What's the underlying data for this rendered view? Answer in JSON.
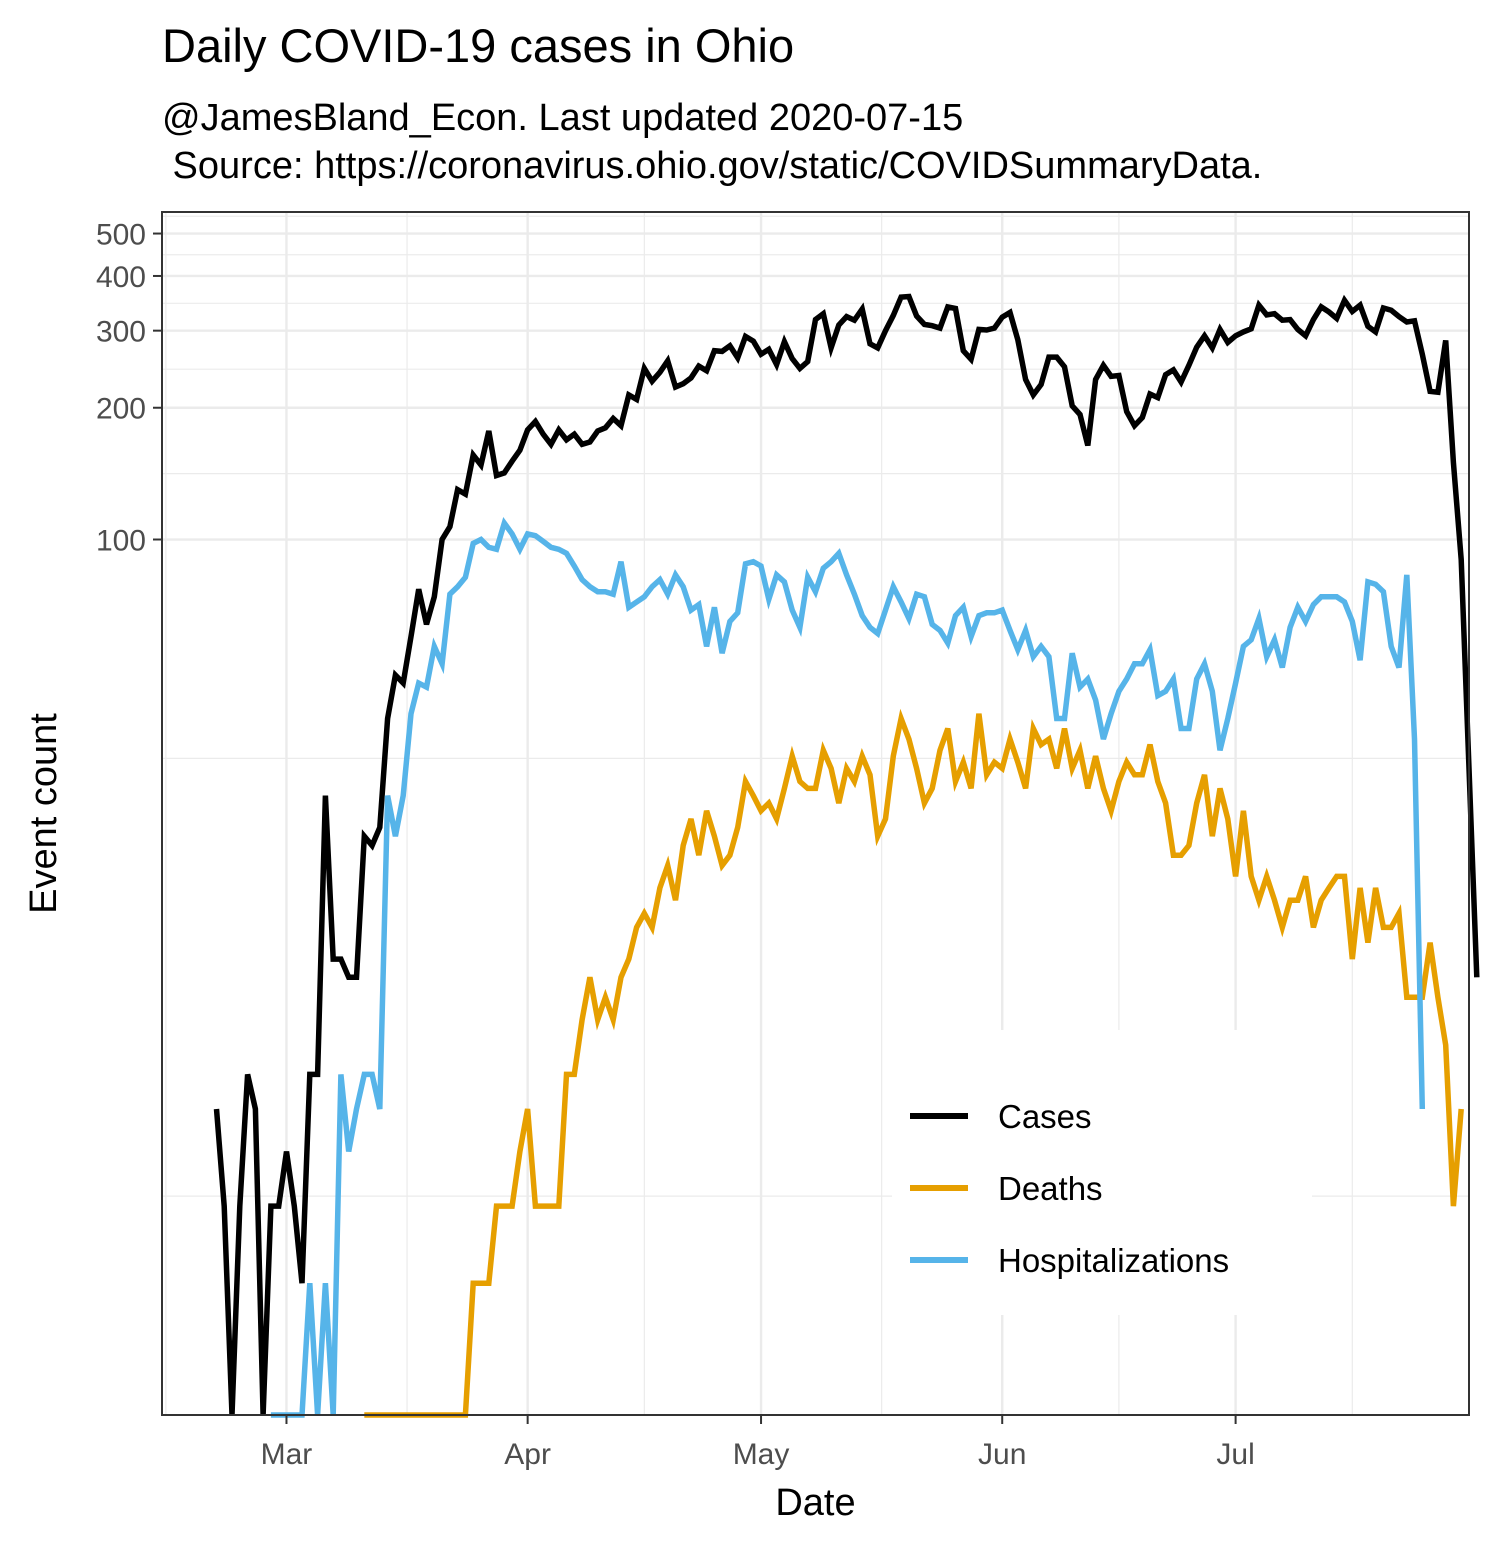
{
  "chart_data": {
    "type": "line",
    "title": "Daily COVID-19 cases in Ohio",
    "subtitle_lines": [
      "@JamesBland_Econ. Last updated 2020-07-15",
      " Source: https://coronavirus.ohio.gov/static/COVIDSummaryData."
    ],
    "xlabel": "Date",
    "ylabel": "Event count",
    "y_scale": "log",
    "y_ticks": [
      100,
      200,
      300,
      400,
      500
    ],
    "y_tick_labels": [
      "100",
      "200",
      "300",
      "400",
      "500"
    ],
    "x_ticks": [
      "2020-03-01",
      "2020-04-01",
      "2020-05-01",
      "2020-06-01",
      "2020-07-01"
    ],
    "x_tick_labels": [
      "Mar",
      "Apr",
      "May",
      "Jun",
      "Jul"
    ],
    "xlim": [
      "2020-02-14",
      "2020-07-31"
    ],
    "ylim": [
      1,
      560
    ],
    "grid": true,
    "legend_position": "bottom-right",
    "start_date": "2020-02-21",
    "series": [
      {
        "name": "Cases",
        "color": "#000000",
        "start": "2020-02-21",
        "values": [
          5,
          3,
          1,
          3,
          6,
          5,
          1,
          3,
          3,
          4,
          3,
          2,
          6,
          6,
          26,
          11,
          11,
          10,
          10,
          21,
          20,
          22,
          39,
          49,
          47,
          60,
          77,
          64,
          74,
          100,
          107,
          130,
          127,
          156,
          148,
          177,
          140,
          142,
          151,
          160,
          178,
          186,
          174,
          165,
          178,
          169,
          174,
          165,
          167,
          177,
          180,
          189,
          182,
          214,
          209,
          246,
          230,
          241,
          256,
          223,
          227,
          234,
          249,
          243,
          270,
          269,
          277,
          260,
          291,
          284,
          265,
          272,
          251,
          283,
          259,
          246,
          255,
          318,
          328,
          274,
          309,
          323,
          317,
          336,
          280,
          274,
          300,
          325,
          358,
          359,
          324,
          310,
          308,
          304,
          340,
          337,
          270,
          258,
          302,
          301,
          304,
          322,
          330,
          286,
          232,
          214,
          226,
          261,
          261,
          248,
          202,
          193,
          164,
          232,
          250,
          236,
          237,
          196,
          182,
          190,
          215,
          211,
          238,
          244,
          229,
          250,
          275,
          292,
          274,
          302,
          282,
          292,
          298,
          303,
          343,
          326,
          328,
          317,
          318,
          302,
          292,
          318,
          340,
          331,
          320,
          352,
          332,
          343,
          307,
          298,
          338,
          334,
          323,
          314,
          316,
          265,
          218,
          217,
          285,
          150,
          90,
          30,
          10
        ]
      },
      {
        "name": "Deaths",
        "color": "#E69F00",
        "start": "2020-03-11",
        "values": [
          1,
          1,
          1,
          1,
          1,
          1,
          1,
          1,
          1,
          1,
          1,
          1,
          1,
          1,
          2,
          2,
          2,
          3,
          3,
          3,
          4,
          5,
          3,
          3,
          3,
          3,
          6,
          6,
          8,
          10,
          8,
          9,
          8,
          10,
          11,
          13,
          14,
          13,
          16,
          18,
          15,
          20,
          23,
          19,
          24,
          21,
          18,
          19,
          22,
          28,
          26,
          24,
          25,
          23,
          27,
          32,
          28,
          27,
          27,
          33,
          30,
          25,
          30,
          28,
          32,
          29,
          21,
          23,
          32,
          39,
          35,
          30,
          25,
          27,
          33,
          37,
          28,
          31,
          27,
          40,
          29,
          31,
          30,
          35,
          31,
          27,
          37,
          34,
          35,
          30,
          37,
          30,
          33,
          27,
          32,
          27,
          24,
          28,
          31,
          29,
          29,
          34,
          28,
          25,
          19,
          19,
          20,
          25,
          29,
          21,
          27,
          23,
          17,
          24,
          17,
          15,
          17,
          15,
          13,
          15,
          15,
          17,
          13,
          15,
          16,
          17,
          17,
          11,
          16,
          12,
          16,
          13,
          13,
          14,
          9,
          9,
          9,
          12,
          9,
          7,
          3,
          5
        ]
      },
      {
        "name": "Hospitalizations",
        "color": "#56B4E9",
        "start": "2020-02-28",
        "values": [
          1,
          1,
          1,
          1,
          1,
          2,
          1,
          2,
          1,
          6,
          4,
          5,
          6,
          6,
          5,
          26,
          21,
          26,
          40,
          47,
          46,
          57,
          52,
          75,
          78,
          82,
          98,
          100,
          96,
          95,
          109,
          103,
          95,
          103,
          102,
          99,
          96,
          95,
          93,
          87,
          81,
          78,
          76,
          76,
          75,
          89,
          70,
          72,
          74,
          78,
          81,
          75,
          83,
          78,
          69,
          71,
          57,
          70,
          55,
          65,
          68,
          88,
          89,
          87,
          73,
          83,
          80,
          69,
          63,
          82,
          76,
          86,
          89,
          93,
          83,
          75,
          67,
          63,
          61,
          69,
          78,
          72,
          66,
          75,
          74,
          64,
          62,
          58,
          67,
          70,
          60,
          67,
          68,
          68,
          69,
          62,
          56,
          62,
          54,
          57,
          54,
          39,
          39,
          55,
          46,
          48,
          43,
          35,
          40,
          45,
          48,
          52,
          52,
          56,
          44,
          45,
          48,
          37,
          37,
          48,
          52,
          45,
          33,
          39,
          47,
          57,
          59,
          66,
          54,
          59,
          51,
          63,
          70,
          65,
          71,
          74,
          74,
          74,
          72,
          65,
          53,
          80,
          79,
          76,
          57,
          51,
          83,
          35,
          5
        ]
      }
    ]
  }
}
